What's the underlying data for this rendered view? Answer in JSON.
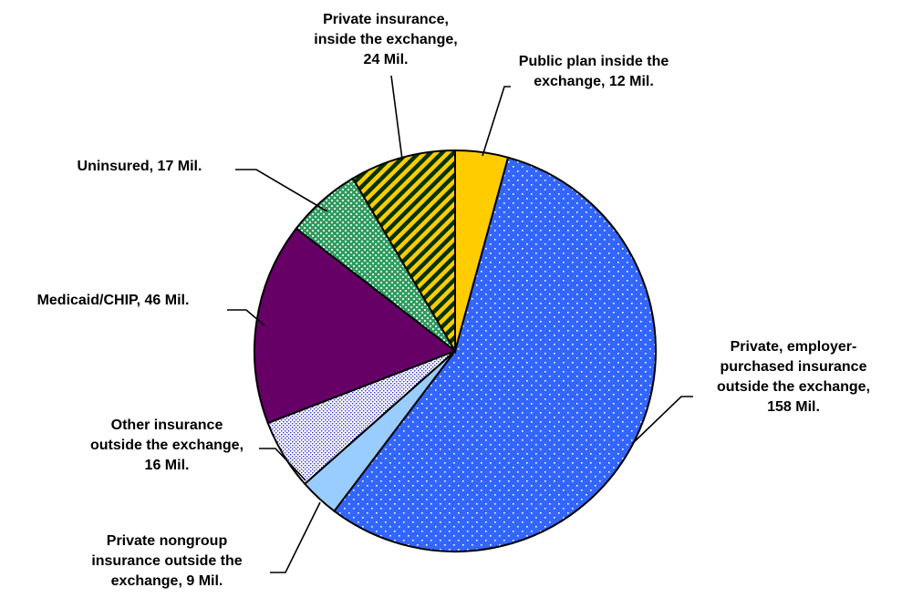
{
  "chart_data": {
    "type": "pie",
    "title": "",
    "slices": [
      {
        "label_lines": [
          "Public plan inside the",
          "exchange, 12 Mil."
        ],
        "value": 12,
        "color": "#ffcc00",
        "pattern": "solid"
      },
      {
        "label_lines": [
          "Private, employer-",
          "purchased insurance",
          "outside the exchange,",
          "158 Mil."
        ],
        "value": 158,
        "color": "#3366ff",
        "pattern": "dots"
      },
      {
        "label_lines": [
          "Private nongroup",
          "insurance outside the",
          "exchange, 9 Mil."
        ],
        "value": 9,
        "color": "#99ccff",
        "pattern": "solid"
      },
      {
        "label_lines": [
          "Other insurance",
          "outside the exchange,",
          "16 Mil."
        ],
        "value": 16,
        "color": "#ccccff",
        "pattern": "fine-dots"
      },
      {
        "label_lines": [
          "Medicaid/CHIP, 46 Mil."
        ],
        "value": 46,
        "color": "#660066",
        "pattern": "solid"
      },
      {
        "label_lines": [
          "Uninsured, 17 Mil."
        ],
        "value": 17,
        "color": "#339966",
        "pattern": "checker"
      },
      {
        "label_lines": [
          "Private insurance,",
          "inside the exchange,",
          "24 Mil."
        ],
        "value": 24,
        "color": "#ffcc00",
        "pattern": "diagonal-stripes"
      }
    ]
  }
}
